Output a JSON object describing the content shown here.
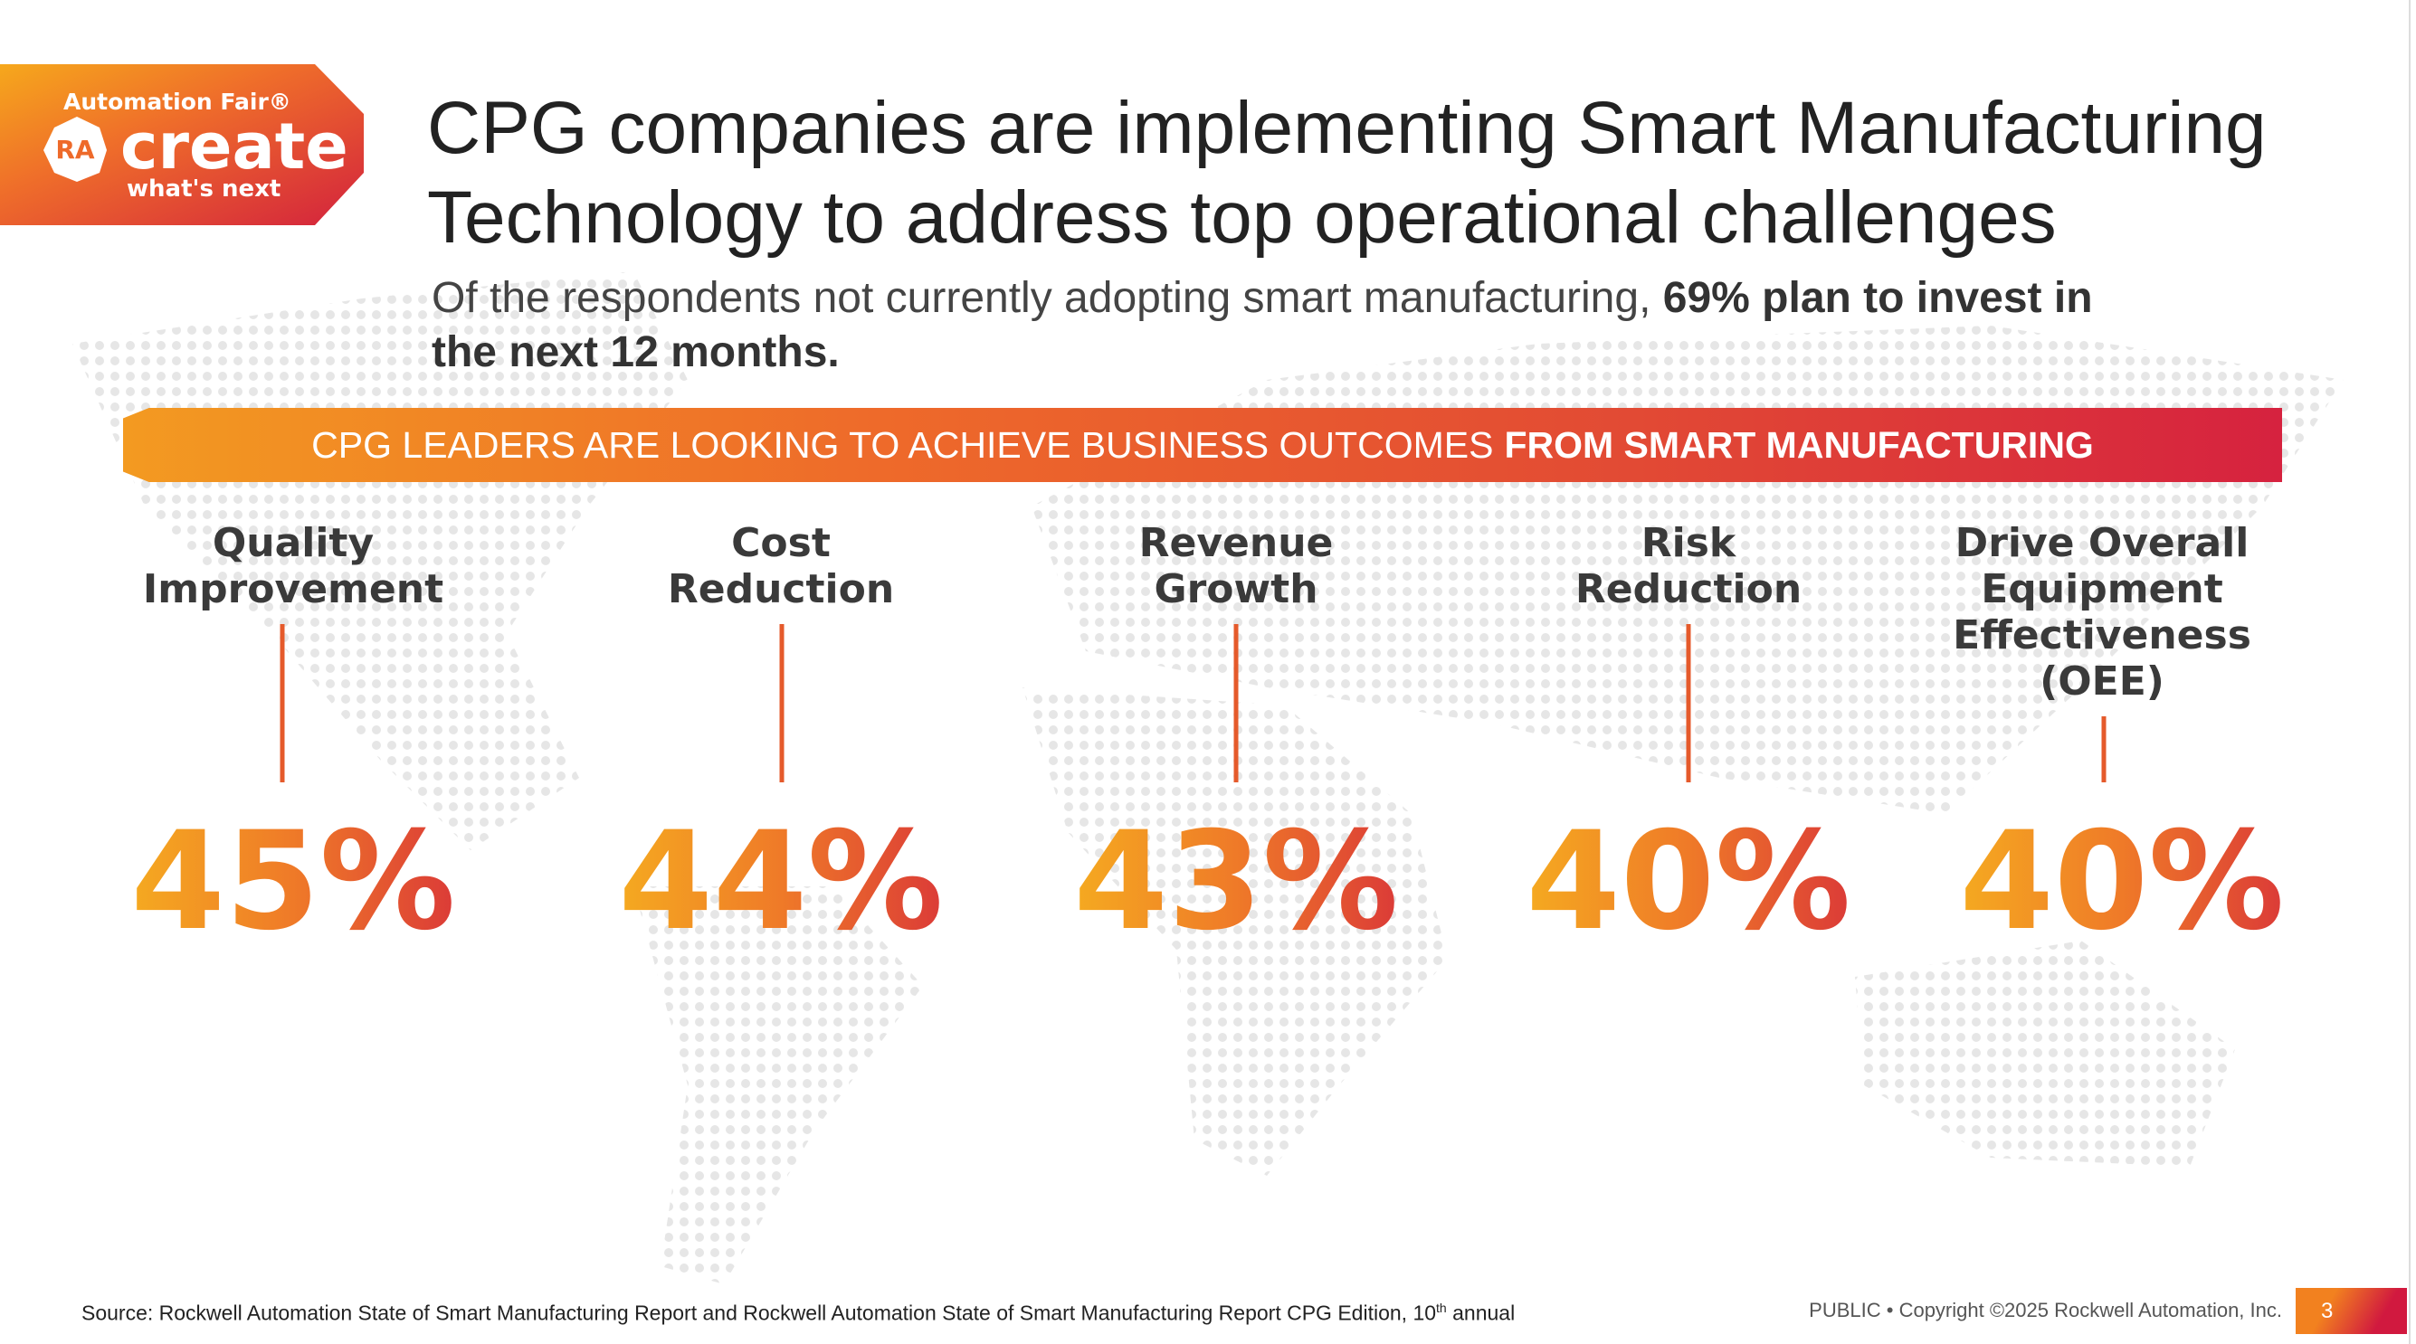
{
  "logo": {
    "top": "Automation Fair®",
    "mark": "RA",
    "main": "create",
    "tagline": "what's next"
  },
  "title": "CPG companies are implementing Smart Manufacturing Technology to address top operational challenges",
  "subtitle": {
    "regular": "Of the respondents not currently adopting smart manufacturing,",
    "bold": "69% plan to invest in the next 12 months."
  },
  "banner": {
    "regular": "CPG LEADERS ARE LOOKING TO ACHIEVE BUSINESS OUTCOMES",
    "bold": "FROM SMART MANUFACTURING"
  },
  "outcomes": [
    {
      "label": "Quality\nImprovement",
      "value": "45%"
    },
    {
      "label": "Cost\nReduction",
      "value": "44%"
    },
    {
      "label": "Revenue\nGrowth",
      "value": "43%"
    },
    {
      "label": "Risk\nReduction",
      "value": "40%"
    },
    {
      "label": "Drive Overall\nEquipment\nEffectiveness\n(OEE)",
      "value": "40%"
    }
  ],
  "footer": {
    "source": "Source: Rockwell Automation State of Smart Manufacturing Report and Rockwell Automation State of Smart Manufacturing Report CPG Edition, 10",
    "source_sup": "th",
    "source_end": " annual",
    "copyright": "PUBLIC • Copyright ©2025 Rockwell Automation, Inc.",
    "page": "3"
  },
  "colors": {
    "accent_orange": "#ef7a28",
    "accent_red": "#d6223f",
    "accent_yellow": "#f6b21f"
  }
}
